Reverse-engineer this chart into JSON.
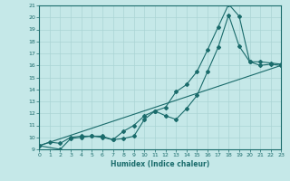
{
  "xlabel": "Humidex (Indice chaleur)",
  "bg_color": "#c5e8e8",
  "grid_color": "#aad4d4",
  "line_color": "#1a6b6b",
  "xlim": [
    0,
    23
  ],
  "ylim": [
    9,
    21
  ],
  "xticks": [
    0,
    1,
    2,
    3,
    4,
    5,
    6,
    7,
    8,
    9,
    10,
    11,
    12,
    13,
    14,
    15,
    16,
    17,
    18,
    19,
    20,
    21,
    22,
    23
  ],
  "yticks": [
    9,
    10,
    11,
    12,
    13,
    14,
    15,
    16,
    17,
    18,
    19,
    20,
    21
  ],
  "line1_x": [
    0,
    1,
    2,
    3,
    4,
    5,
    6,
    7,
    8,
    9,
    10,
    11,
    12,
    13,
    14,
    15,
    16,
    17,
    18,
    19,
    20,
    21,
    22,
    23
  ],
  "line1_y": [
    9.3,
    9.6,
    9.5,
    10.0,
    10.1,
    10.1,
    10.1,
    9.8,
    9.9,
    10.1,
    11.5,
    12.2,
    12.5,
    13.8,
    14.4,
    15.5,
    17.3,
    19.2,
    21.1,
    20.1,
    16.3,
    16.3,
    16.2,
    16.1
  ],
  "line2_x": [
    0,
    2,
    3,
    4,
    5,
    6,
    7,
    8,
    9,
    10,
    11,
    12,
    13,
    14,
    15,
    16,
    17,
    18,
    19,
    20,
    21,
    22,
    23
  ],
  "line2_y": [
    9.3,
    9.0,
    9.9,
    10.0,
    10.1,
    10.0,
    9.8,
    10.5,
    11.0,
    11.8,
    12.2,
    11.8,
    11.5,
    12.4,
    13.5,
    15.5,
    17.5,
    20.2,
    17.6,
    16.3,
    16.0,
    16.1,
    16.0
  ],
  "line3_x": [
    0,
    23
  ],
  "line3_y": [
    9.3,
    16.0
  ]
}
